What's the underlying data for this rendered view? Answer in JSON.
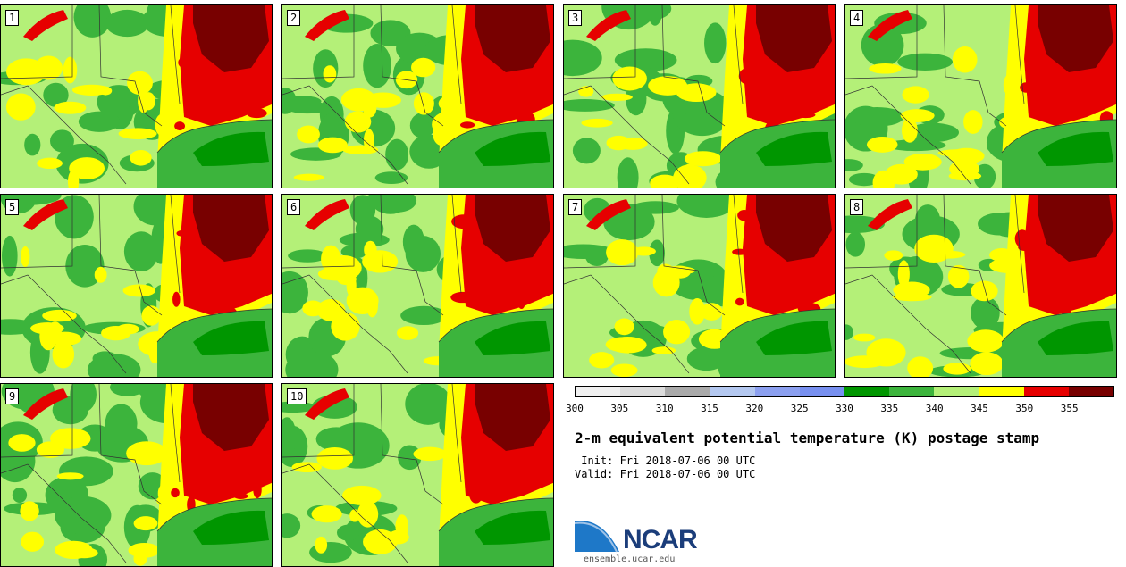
{
  "stamps": [
    {
      "label": "1"
    },
    {
      "label": "2"
    },
    {
      "label": "3"
    },
    {
      "label": "4"
    },
    {
      "label": "5"
    },
    {
      "label": "6"
    },
    {
      "label": "7"
    },
    {
      "label": "8"
    },
    {
      "label": "9"
    },
    {
      "label": "10"
    }
  ],
  "colorbar": {
    "ticks": [
      "300",
      "305",
      "310",
      "315",
      "320",
      "325",
      "330",
      "335",
      "340",
      "345",
      "350",
      "355"
    ],
    "colors": [
      "#f0f0f0",
      "#dcdcdc",
      "#aaaaaa",
      "#b4c8f0",
      "#8ca0f0",
      "#7890f0",
      "#009600",
      "#3cb43c",
      "#b4f078",
      "#ffff00",
      "#e60000",
      "#780000"
    ]
  },
  "title": "2-m equivalent potential temperature (K) postage stamp",
  "init": " Init: Fri 2018-07-06 00 UTC",
  "valid": "Valid: Fri 2018-07-06 00 UTC",
  "logo": {
    "word": "NCAR",
    "url": "ensemble.ucar.edu"
  },
  "map_colors": {
    "land_base": "#b4f078",
    "green_mid": "#3cb43c",
    "gulf": "#3cb43c",
    "gulf_deep": "#009600",
    "yellow": "#ffff00",
    "red": "#e60000",
    "dark_red": "#780000"
  }
}
